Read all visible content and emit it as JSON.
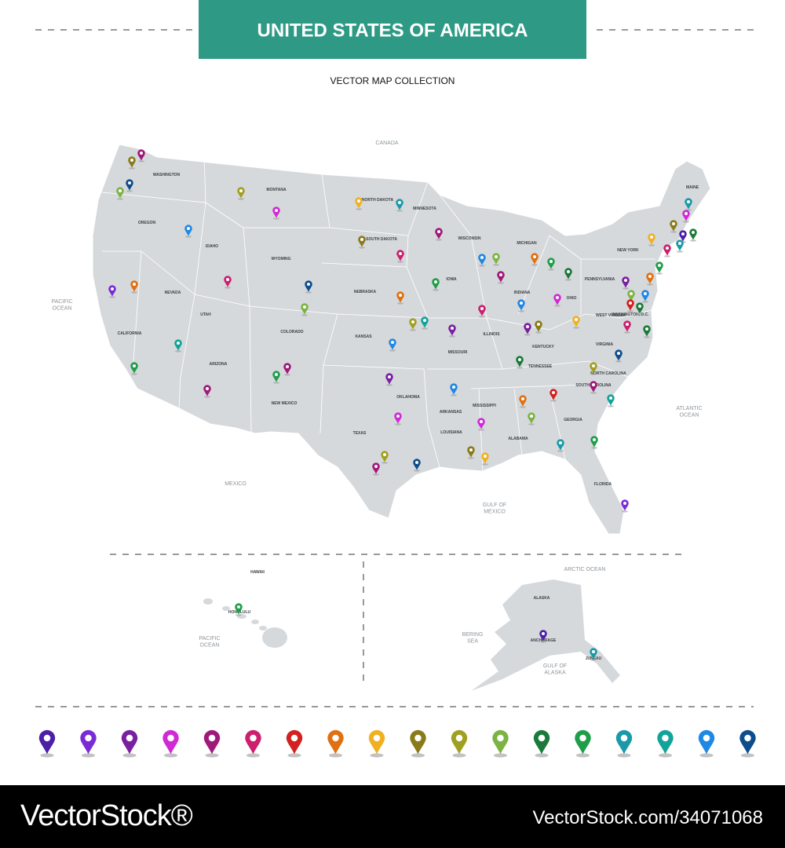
{
  "header": {
    "title": "UNITED STATES OF AMERICA",
    "subtitle": "VECTOR MAP COLLECTION"
  },
  "regions": [
    "CANADA",
    "PACIFIC\nOCEAN",
    "ATLANTIC\nOCEAN",
    "MEXICO",
    "GULF OF\nMEXICO",
    "ARCTIC OCEAN",
    "BERING\nSEA",
    "GULF OF\nALASKA",
    "PACIFIC\nOCEAN"
  ],
  "states": [
    "WASHINGTON",
    "OREGON",
    "CALIFORNIA",
    "NEVADA",
    "IDAHO",
    "MONTANA",
    "WYOMING",
    "UTAH",
    "COLORADO",
    "ARIZONA",
    "NEW MEXICO",
    "TEXAS",
    "OKLAHOMA",
    "KANSAS",
    "NEBRASKA",
    "SOUTH DAKOTA",
    "NORTH DAKOTA",
    "MINNESOTA",
    "IOWA",
    "MISSOURI",
    "ARKANSAS",
    "LOUISIANA",
    "MISSISSIPPI",
    "ALABAMA",
    "GEORGIA",
    "FLORIDA",
    "TENNESSEE",
    "KENTUCKY",
    "ILLINOIS",
    "INDIANA",
    "OHIO",
    "MICHIGAN",
    "WISCONSIN",
    "PENNSYLVANIA",
    "NEW YORK",
    "VIRGINIA",
    "NORTH CAROLINA",
    "SOUTH CAROLINA",
    "MAINE",
    "WEST VIRGINIA",
    "WASHINGTON, D.C.",
    "HAWAII",
    "ALASKA",
    "HONOLULU",
    "ANCHORAGE",
    "JUNEAU"
  ],
  "footer": {
    "brand": "VectorStock®",
    "id": "VectorStock.com/34071068"
  }
}
